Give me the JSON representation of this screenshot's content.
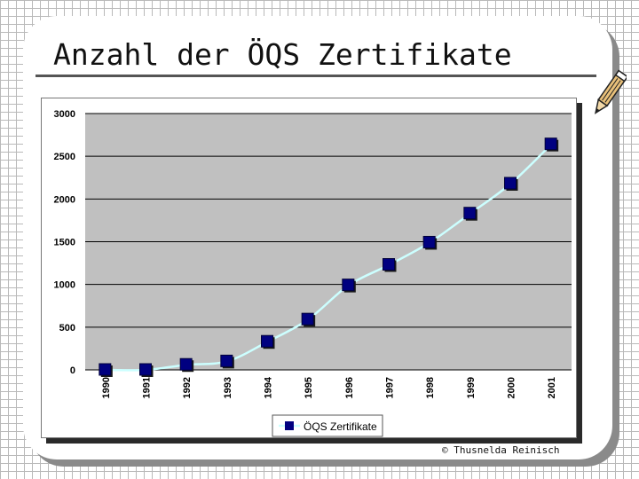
{
  "slide": {
    "title": "Anzahl der ÖQS Zertifikate",
    "copyright": "© Thusnelda Reinisch"
  },
  "icons": {
    "pencil": "pencil-icon"
  },
  "colors": {
    "plot_bg": "#c0c0c0",
    "line": "#ccffff",
    "marker": "#000080",
    "gridline": "#000000"
  },
  "chart_data": {
    "type": "line",
    "categories": [
      "1990",
      "1991",
      "1992",
      "1993",
      "1994",
      "1995",
      "1996",
      "1997",
      "1998",
      "1999",
      "2000",
      "2001"
    ],
    "series": [
      {
        "name": "ÖQS Zertifikate",
        "values": [
          0,
          0,
          60,
          100,
          330,
          590,
          990,
          1230,
          1490,
          1830,
          2180,
          2640
        ]
      }
    ],
    "yticks": [
      "0",
      "500",
      "1000",
      "1500",
      "2000",
      "2500",
      "3000"
    ],
    "ylim": [
      0,
      3000
    ],
    "grid": true,
    "legend_position": "bottom"
  }
}
